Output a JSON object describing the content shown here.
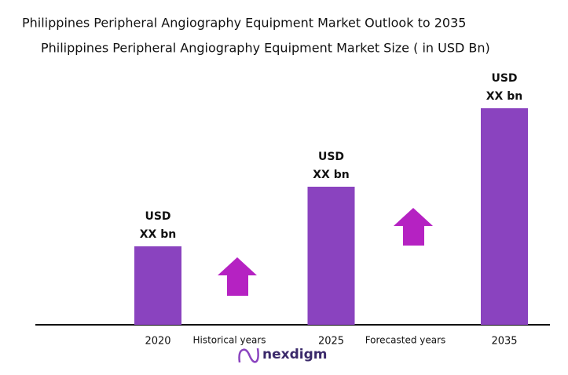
{
  "chart_data": {
    "type": "bar",
    "title": "Philippines Peripheral Angiography Equipment Market Outlook to 2035",
    "subtitle": "Philippines Peripheral Angiography Equipment Market Size  ( in USD Bn)",
    "categories": [
      "2020",
      "2025",
      "2035"
    ],
    "values": [
      1.0,
      1.76,
      2.76
    ],
    "value_labels": [
      [
        "USD",
        "XX bn"
      ],
      [
        "USD",
        "XX bn"
      ],
      [
        "USD",
        "XX bn"
      ]
    ],
    "color": "#8a43bf",
    "ylim": [
      0,
      3.2
    ],
    "annotations": [
      "Historical years",
      "Forecasted years"
    ],
    "brand": "nexdigm"
  }
}
